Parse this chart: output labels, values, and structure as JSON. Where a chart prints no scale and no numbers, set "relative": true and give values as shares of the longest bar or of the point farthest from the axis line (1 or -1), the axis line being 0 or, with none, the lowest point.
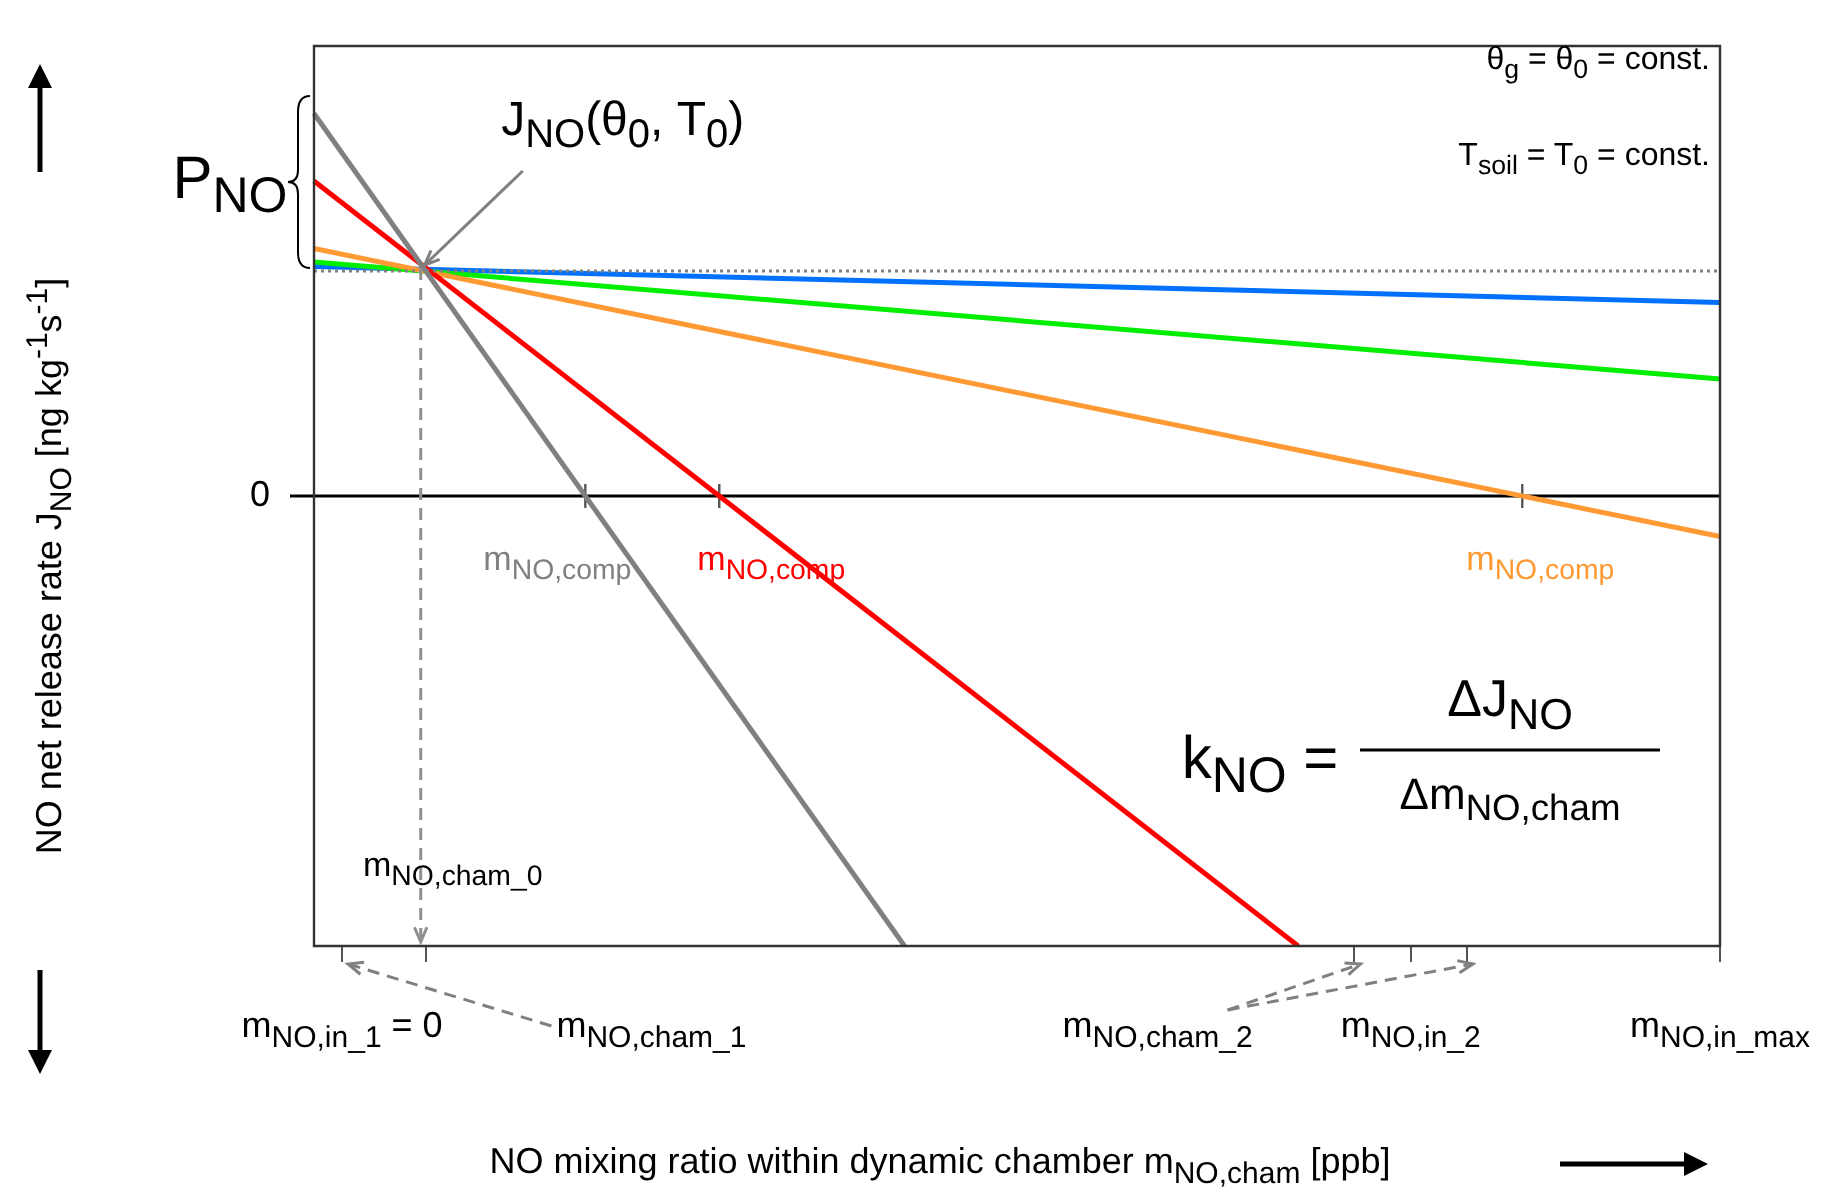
{
  "chart_data": {
    "type": "line",
    "relative": true,
    "marker": "none",
    "xlabel": "NO mixing ratio within dynamic chamber m$_{NO,cham}$  [ppb]",
    "ylabel": "NO net release rate J$_{NO}$  [ng kg$^{-1}$s$^{-1}$]",
    "categories": [
      null,
      "m$_{NO,in_1}$ = 0",
      null,
      null,
      null,
      null,
      null,
      null,
      null,
      null,
      null,
      null,
      "m$_{NO,cham_1}$",
      null,
      null,
      null,
      null,
      null,
      null,
      null,
      null,
      null,
      null,
      null,
      null,
      null,
      null,
      null,
      null,
      null,
      "m$_{NO,cham_2}$",
      null,
      null,
      null,
      null,
      null,
      null,
      null,
      null,
      "m$_{NO,in_2}$",
      null,
      null,
      null,
      null,
      null,
      null,
      null,
      null,
      null,
      null,
      "m$_{NO,in_max}$"
    ],
    "series": [
      {
        "color": "#808080",
        "line_style": "dotted",
        "values": [
          0.5,
          null,
          null,
          null,
          null,
          null,
          null,
          null,
          null,
          null,
          null,
          null,
          null,
          null,
          null,
          null,
          null,
          null,
          null,
          null,
          null,
          null,
          null,
          null,
          null,
          null,
          null,
          null,
          null,
          null,
          null,
          null,
          null,
          null,
          null,
          null,
          null,
          null,
          null,
          null,
          null,
          null,
          null,
          null,
          null,
          null,
          null,
          null,
          null,
          null,
          0.5
        ]
      },
      {
        "color": "#808080",
        "line_style": "solid",
        "values": [
          0.85,
          null,
          null,
          null,
          null,
          null,
          null,
          null,
          null,
          null,
          null,
          null,
          null,
          null,
          null,
          null,
          null,
          null,
          null,
          null,
          null,
          -1,
          null,
          null,
          null,
          null,
          null,
          null,
          null,
          null,
          null,
          null,
          null,
          null,
          null,
          null,
          null,
          null,
          null,
          null,
          null,
          null,
          null,
          null,
          null,
          null,
          null,
          null,
          null,
          null,
          null
        ]
      },
      {
        "color": "#ff0000",
        "line_style": "solid",
        "values": [
          0.7,
          null,
          null,
          null,
          null,
          null,
          null,
          null,
          null,
          null,
          null,
          null,
          null,
          null,
          null,
          null,
          null,
          null,
          null,
          null,
          null,
          null,
          null,
          null,
          null,
          null,
          null,
          null,
          null,
          null,
          null,
          null,
          null,
          null,
          null,
          -1,
          null,
          null,
          null,
          null,
          null,
          null,
          null,
          null,
          null,
          null,
          null,
          null,
          null,
          null,
          null
        ]
      },
      {
        "color": "#ff9933",
        "line_style": "solid",
        "values": [
          0.55,
          null,
          null,
          null,
          null,
          null,
          null,
          null,
          null,
          null,
          null,
          null,
          null,
          null,
          null,
          null,
          null,
          null,
          null,
          null,
          null,
          null,
          null,
          null,
          null,
          null,
          null,
          null,
          null,
          null,
          null,
          null,
          null,
          null,
          null,
          null,
          null,
          null,
          null,
          null,
          null,
          null,
          null,
          null,
          null,
          null,
          null,
          null,
          null,
          null,
          -0.09
        ]
      },
      {
        "color": "#00ee00",
        "line_style": "solid",
        "values": [
          0.52,
          null,
          null,
          null,
          null,
          null,
          null,
          null,
          null,
          null,
          null,
          null,
          null,
          null,
          null,
          null,
          null,
          null,
          null,
          null,
          null,
          null,
          null,
          null,
          null,
          null,
          null,
          null,
          null,
          null,
          null,
          null,
          null,
          null,
          null,
          null,
          null,
          null,
          null,
          null,
          null,
          null,
          null,
          null,
          null,
          null,
          null,
          null,
          null,
          null,
          0.26
        ]
      },
      {
        "color": "#0070ff",
        "line_style": "solid",
        "values": [
          0.51,
          null,
          null,
          null,
          null,
          null,
          null,
          null,
          null,
          null,
          null,
          null,
          null,
          null,
          null,
          null,
          null,
          null,
          null,
          null,
          null,
          null,
          null,
          null,
          null,
          null,
          null,
          null,
          null,
          null,
          null,
          null,
          null,
          null,
          null,
          null,
          null,
          null,
          null,
          null,
          null,
          null,
          null,
          null,
          null,
          null,
          null,
          null,
          null,
          null,
          0.43
        ]
      }
    ],
    "ref_lines": [
      {
        "axis": "y",
        "value": 0,
        "label": "0",
        "color": "#000000"
      }
    ],
    "annotations": [
      {
        "text": "J$_{NO}$(θ$_{0}$, T$_{0}$)",
        "y": 0.5
      },
      "P$_{NO}$",
      "θ$_{g}$ = θ$_{0}$ = const.",
      "T$_{soil}$ = T$_{0}$ = const.",
      {
        "text": "m$_{NO,comp}$",
        "y": 0
      },
      {
        "text": "m$_{NO,comp}$",
        "y": 0
      },
      {
        "text": "m$_{NO,comp}$",
        "y": 0
      },
      "k$_{NO}$ =",
      "ΔJ$_{NO}$",
      "Δm$_{NO,cham}$",
      "m$_{NO,cham_0}$"
    ]
  }
}
